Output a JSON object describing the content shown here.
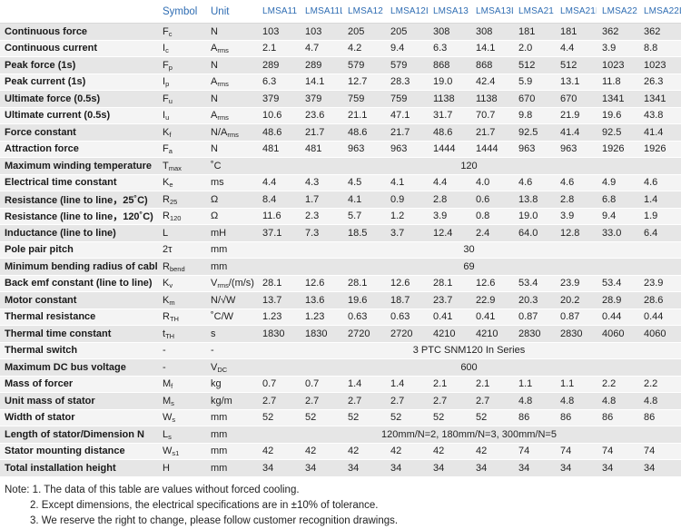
{
  "header": {
    "symbol": "Symbol",
    "unit": "Unit",
    "models": [
      "LMSA11",
      "LMSA11L",
      "LMSA12",
      "LMSA12L",
      "LMSA13",
      "LMSA13L",
      "LMSA21",
      "LMSA21L",
      "LMSA22",
      "LMSA22L"
    ]
  },
  "rows": [
    {
      "param": "Continuous force",
      "sym": "F",
      "symSub": "c",
      "unit": "N",
      "values": [
        "103",
        "103",
        "205",
        "205",
        "308",
        "308",
        "181",
        "181",
        "362",
        "362"
      ]
    },
    {
      "param": "Continuous current",
      "sym": "I",
      "symSub": "c",
      "unit": "A",
      "unitSub": "rms",
      "values": [
        "2.1",
        "4.7",
        "4.2",
        "9.4",
        "6.3",
        "14.1",
        "2.0",
        "4.4",
        "3.9",
        "8.8"
      ]
    },
    {
      "param": "Peak force (1s)",
      "sym": "F",
      "symSub": "p",
      "unit": "N",
      "values": [
        "289",
        "289",
        "579",
        "579",
        "868",
        "868",
        "512",
        "512",
        "1023",
        "1023"
      ]
    },
    {
      "param": "Peak current (1s)",
      "sym": "I",
      "symSub": "p",
      "unit": "A",
      "unitSub": "rms",
      "values": [
        "6.3",
        "14.1",
        "12.7",
        "28.3",
        "19.0",
        "42.4",
        "5.9",
        "13.1",
        "11.8",
        "26.3"
      ]
    },
    {
      "param": "Ultimate force (0.5s)",
      "sym": "F",
      "symSub": "u",
      "unit": "N",
      "values": [
        "379",
        "379",
        "759",
        "759",
        "1138",
        "1138",
        "670",
        "670",
        "1341",
        "1341"
      ]
    },
    {
      "param": "Ultimate current (0.5s)",
      "sym": "I",
      "symSub": "u",
      "unit": "A",
      "unitSub": "rms",
      "values": [
        "10.6",
        "23.6",
        "21.1",
        "47.1",
        "31.7",
        "70.7",
        "9.8",
        "21.9",
        "19.6",
        "43.8"
      ]
    },
    {
      "param": "Force constant",
      "sym": "K",
      "symSub": "f",
      "unit": "N/A",
      "unitSub": "rms",
      "values": [
        "48.6",
        "21.7",
        "48.6",
        "21.7",
        "48.6",
        "21.7",
        "92.5",
        "41.4",
        "92.5",
        "41.4"
      ]
    },
    {
      "param": "Attraction force",
      "sym": "F",
      "symSub": "a",
      "unit": "N",
      "values": [
        "481",
        "481",
        "963",
        "963",
        "1444",
        "1444",
        "963",
        "963",
        "1926",
        "1926"
      ]
    },
    {
      "param": "Maximum winding temperature",
      "sym": "T",
      "symSub": "max",
      "unit": "˚C",
      "merged": "120"
    },
    {
      "param": "Electrical time constant",
      "sym": "K",
      "symSub": "e",
      "unit": "ms",
      "values": [
        "4.4",
        "4.3",
        "4.5",
        "4.1",
        "4.4",
        "4.0",
        "4.6",
        "4.6",
        "4.9",
        "4.6"
      ]
    },
    {
      "param": "Resistance (line to line，25˚C)",
      "sym": "R",
      "symSub": "25",
      "unit": "Ω",
      "values": [
        "8.4",
        "1.7",
        "4.1",
        "0.9",
        "2.8",
        "0.6",
        "13.8",
        "2.8",
        "6.8",
        "1.4"
      ]
    },
    {
      "param": "Resistance (line to line，120˚C)",
      "sym": "R",
      "symSub": "120",
      "unit": "Ω",
      "values": [
        "11.6",
        "2.3",
        "5.7",
        "1.2",
        "3.9",
        "0.8",
        "19.0",
        "3.9",
        "9.4",
        "1.9"
      ]
    },
    {
      "param": "Inductance (line to line)",
      "sym": "L",
      "unit": "mH",
      "values": [
        "37.1",
        "7.3",
        "18.5",
        "3.7",
        "12.4",
        "2.4",
        "64.0",
        "12.8",
        "33.0",
        "6.4"
      ]
    },
    {
      "param": "Pole pair pitch",
      "sym": "2τ",
      "unit": "mm",
      "merged": "30"
    },
    {
      "param": "Minimum bending radius of cable",
      "sym": "R",
      "symSub": "bend",
      "unit": "mm",
      "merged": "69"
    },
    {
      "param": "Back emf constant (line to line)",
      "sym": "K",
      "symSub": "v",
      "unit": "V",
      "unitSub": "rms",
      "unitTail": "/(m/s)",
      "values": [
        "28.1",
        "12.6",
        "28.1",
        "12.6",
        "28.1",
        "12.6",
        "53.4",
        "23.9",
        "53.4",
        "23.9"
      ]
    },
    {
      "param": "Motor constant",
      "sym": "K",
      "symSub": "m",
      "unit": "N/√W",
      "values": [
        "13.7",
        "13.6",
        "19.6",
        "18.7",
        "23.7",
        "22.9",
        "20.3",
        "20.2",
        "28.9",
        "28.6"
      ]
    },
    {
      "param": "Thermal resistance",
      "sym": "R",
      "symSub": "TH",
      "unit": "˚C/W",
      "values": [
        "1.23",
        "1.23",
        "0.63",
        "0.63",
        "0.41",
        "0.41",
        "0.87",
        "0.87",
        "0.44",
        "0.44"
      ]
    },
    {
      "param": "Thermal time constant",
      "sym": "t",
      "symSub": "TH",
      "unit": "s",
      "values": [
        "1830",
        "1830",
        "2720",
        "2720",
        "4210",
        "4210",
        "2830",
        "2830",
        "4060",
        "4060"
      ]
    },
    {
      "param": "Thermal switch",
      "sym": "-",
      "unit": "-",
      "merged": "3 PTC SNM120 In Series"
    },
    {
      "param": "Maximum DC bus voltage",
      "sym": "-",
      "unit": "V",
      "unitSub": "DC",
      "merged": "600"
    },
    {
      "param": "Mass of forcer",
      "sym": "M",
      "symSub": "f",
      "unit": "kg",
      "values": [
        "0.7",
        "0.7",
        "1.4",
        "1.4",
        "2.1",
        "2.1",
        "1.1",
        "1.1",
        "2.2",
        "2.2"
      ]
    },
    {
      "param": "Unit mass of stator",
      "sym": "M",
      "symSub": "s",
      "unit": "kg/m",
      "values": [
        "2.7",
        "2.7",
        "2.7",
        "2.7",
        "2.7",
        "2.7",
        "4.8",
        "4.8",
        "4.8",
        "4.8"
      ]
    },
    {
      "param": "Width of stator",
      "sym": "W",
      "symSub": "s",
      "unit": "mm",
      "values": [
        "52",
        "52",
        "52",
        "52",
        "52",
        "52",
        "86",
        "86",
        "86",
        "86"
      ]
    },
    {
      "param": "Length of stator/Dimension N",
      "sym": "L",
      "symSub": "s",
      "unit": "mm",
      "merged": "120mm/N=2, 180mm/N=3, 300mm/N=5"
    },
    {
      "param": "Stator mounting distance",
      "sym": "W",
      "symSub": "s1",
      "unit": "mm",
      "values": [
        "42",
        "42",
        "42",
        "42",
        "42",
        "42",
        "74",
        "74",
        "74",
        "74"
      ]
    },
    {
      "param": "Total installation height",
      "sym": "H",
      "unit": "mm",
      "values": [
        "34",
        "34",
        "34",
        "34",
        "34",
        "34",
        "34",
        "34",
        "34",
        "34"
      ]
    }
  ],
  "notes": [
    "Note: 1. The  data of this table are values without forced cooling.",
    "2. Except dimensions, the electrical specifications are in ±10% of tolerance.",
    "3. We reserve the right to change, please follow customer recognition drawings."
  ]
}
